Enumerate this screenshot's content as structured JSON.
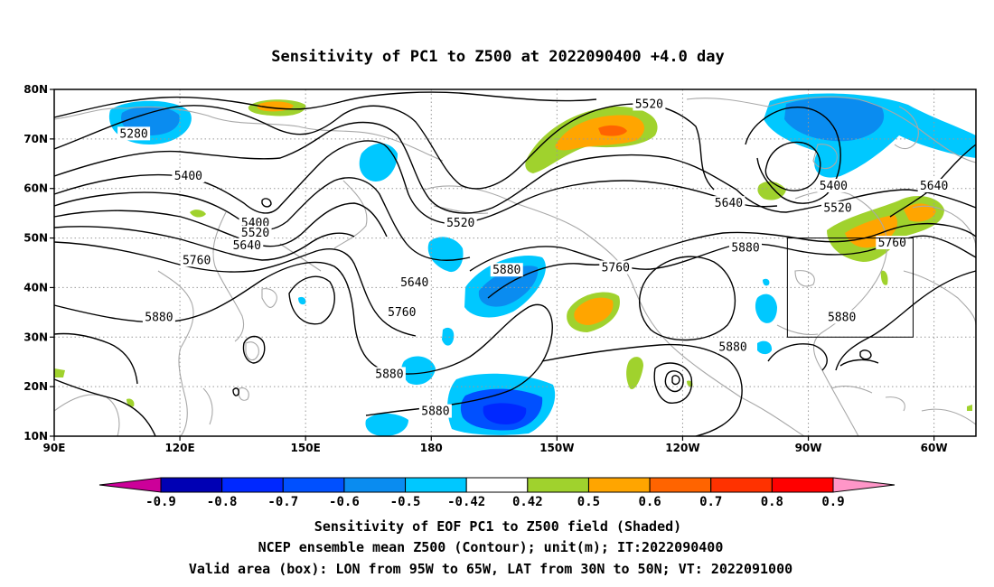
{
  "title": "Sensitivity of PC1 to Z500 at 2022090400 +4.0 day",
  "map": {
    "lon_ticks": [
      "90E",
      "120E",
      "150E",
      "180",
      "150W",
      "120W",
      "90W",
      "60W"
    ],
    "lat_ticks": [
      "80N",
      "70N",
      "60N",
      "50N",
      "40N",
      "30N",
      "20N",
      "10N"
    ],
    "lon_range_deg_east": [
      90,
      310
    ],
    "lat_range_deg": [
      10,
      80
    ],
    "grid": true,
    "valid_box": {
      "lon": [
        "95W",
        "65W"
      ],
      "lat": [
        "30N",
        "50N"
      ]
    }
  },
  "contour_labels": [
    {
      "text": "5280",
      "lon": 109,
      "lat": 71
    },
    {
      "text": "5400",
      "lon": 122,
      "lat": 62.5
    },
    {
      "text": "5400",
      "lon": 138,
      "lat": 53
    },
    {
      "text": "5520",
      "lon": 138,
      "lat": 51
    },
    {
      "text": "5640",
      "lon": 136,
      "lat": 48.5
    },
    {
      "text": "5760",
      "lon": 124,
      "lat": 45.5
    },
    {
      "text": "5880",
      "lon": 115,
      "lat": 34
    },
    {
      "text": "5520",
      "lon": 187,
      "lat": 53
    },
    {
      "text": "5640",
      "lon": 176,
      "lat": 41
    },
    {
      "text": "5760",
      "lon": 173,
      "lat": 35
    },
    {
      "text": "5880",
      "lon": 198,
      "lat": 43.5
    },
    {
      "text": "5880",
      "lon": 170,
      "lat": 22.5
    },
    {
      "text": "5880",
      "lon": 181,
      "lat": 15
    },
    {
      "text": "5520",
      "lon": 232,
      "lat": 77
    },
    {
      "text": "5640",
      "lon": 251,
      "lat": 57
    },
    {
      "text": "5760",
      "lon": 224,
      "lat": 44
    },
    {
      "text": "5880",
      "lon": 255,
      "lat": 48
    },
    {
      "text": "5880",
      "lon": 252,
      "lat": 28
    },
    {
      "text": "5400",
      "lon": 276,
      "lat": 60.5
    },
    {
      "text": "5520",
      "lon": 277,
      "lat": 56
    },
    {
      "text": "5640",
      "lon": 300,
      "lat": 60.5
    },
    {
      "text": "5760",
      "lon": 290,
      "lat": 49
    },
    {
      "text": "5880",
      "lon": 278,
      "lat": 34
    }
  ],
  "colorbar": {
    "labels": [
      "-0.9",
      "-0.8",
      "-0.7",
      "-0.6",
      "-0.5",
      "-0.42",
      "0.42",
      "0.5",
      "0.6",
      "0.7",
      "0.8",
      "0.9"
    ],
    "colors": [
      "#cc0099",
      "#0000b4",
      "#0028ff",
      "#0050ff",
      "#0a8cf0",
      "#00c8ff",
      "#ffffff",
      "#a0d22d",
      "#ffa500",
      "#ff6400",
      "#ff3200",
      "#ff0000",
      "#ff96c8"
    ]
  },
  "caption": [
    "Sensitivity of EOF PC1 to Z500 field (Shaded)",
    "NCEP ensemble mean Z500 (Contour); unit(m); IT:2022090400",
    "Valid area (box): LON from 95W to 65W, LAT from 30N to 50N; VT: 2022091000"
  ]
}
